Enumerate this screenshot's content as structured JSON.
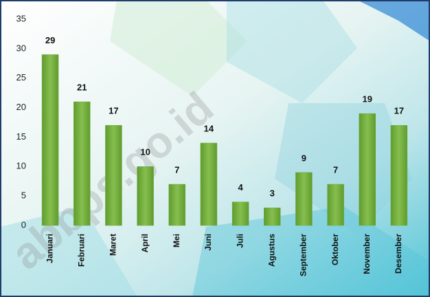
{
  "chart_data": {
    "type": "bar",
    "categories": [
      "Januari",
      "Februari",
      "Maret",
      "April",
      "Mei",
      "Juni",
      "Juli",
      "Agustus",
      "September",
      "Oktober",
      "November",
      "Desember"
    ],
    "values": [
      29,
      21,
      17,
      10,
      7,
      14,
      4,
      3,
      9,
      7,
      19,
      17
    ],
    "color": "#70ad47",
    "ylim": [
      0,
      35
    ],
    "yticks": [
      0,
      5,
      10,
      15,
      20,
      25,
      30,
      35
    ],
    "grid": false,
    "annotation": "abbps.go.id"
  }
}
